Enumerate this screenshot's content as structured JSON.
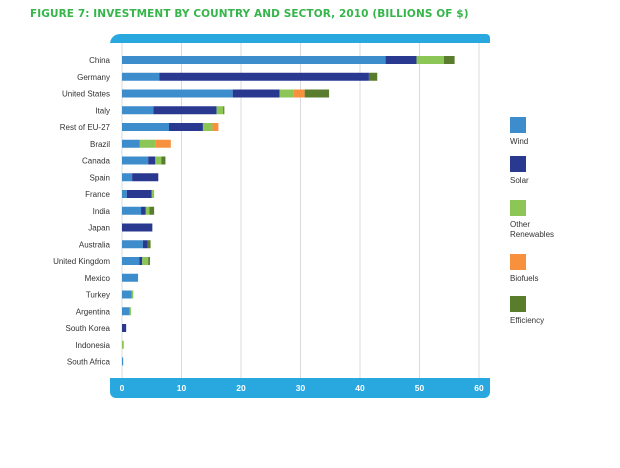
{
  "chart_data": {
    "type": "bar",
    "orientation": "horizontal",
    "stacked": true,
    "title": "FIGURE 7: INVESTMENT BY COUNTRY AND SECTOR, 2010 (BILLIONS OF $)",
    "xlabel": "",
    "ylabel": "",
    "xlim": [
      0,
      60
    ],
    "xticks": [
      "0",
      "10",
      "20",
      "30",
      "40",
      "50",
      "60"
    ],
    "grid": true,
    "categories": [
      "China",
      "Germany",
      "United States",
      "Italy",
      "Rest of EU-27",
      "Brazil",
      "Canada",
      "Spain",
      "France",
      "India",
      "Japan",
      "Australia",
      "United Kingdom",
      "Mexico",
      "Turkey",
      "Argentina",
      "South Korea",
      "Indonesia",
      "South Africa"
    ],
    "series": [
      {
        "name": "Wind",
        "color": "#3d8ccc",
        "values": [
          44.3,
          6.3,
          18.6,
          5.3,
          7.9,
          3.0,
          4.4,
          1.7,
          0.8,
          3.2,
          0.0,
          3.5,
          2.9,
          2.7,
          1.6,
          1.3,
          0.0,
          0.0,
          0.2
        ]
      },
      {
        "name": "Solar",
        "color": "#2a3990",
        "values": [
          5.2,
          35.2,
          7.9,
          10.6,
          5.7,
          0.0,
          1.2,
          4.4,
          4.2,
          0.8,
          5.1,
          0.8,
          0.5,
          0.0,
          0.0,
          0.0,
          0.7,
          0.0,
          0.0
        ]
      },
      {
        "name": "Other Renewables",
        "color": "#8cc657",
        "values": [
          4.6,
          0.0,
          2.3,
          1.1,
          1.6,
          2.6,
          1.0,
          0.0,
          0.4,
          0.6,
          0.0,
          0.0,
          1.0,
          0.0,
          0.3,
          0.2,
          0.0,
          0.3,
          0.0
        ]
      },
      {
        "name": "Biofuels",
        "color": "#f7913e",
        "values": [
          0.0,
          0.0,
          1.9,
          0.0,
          1.0,
          2.6,
          0.0,
          0.0,
          0.0,
          0.0,
          0.0,
          0.0,
          0.0,
          0.0,
          0.0,
          0.0,
          0.0,
          0.0,
          0.0
        ]
      },
      {
        "name": "Efficiency",
        "color": "#5a7d2d",
        "values": [
          1.8,
          1.4,
          4.1,
          0.2,
          0.0,
          0.0,
          0.7,
          0.0,
          0.0,
          0.8,
          0.0,
          0.5,
          0.3,
          0.0,
          0.0,
          0.0,
          0.0,
          0.0,
          0.0
        ]
      }
    ],
    "legend": {
      "position": "right",
      "entries": [
        "Wind",
        "Solar",
        "Other\nRenewables",
        "Biofuels",
        "Efficiency"
      ]
    }
  },
  "theme": {
    "title_color": "#35b54a",
    "frame_color": "#29a8e0",
    "grid_color": "#cfd3d6"
  }
}
